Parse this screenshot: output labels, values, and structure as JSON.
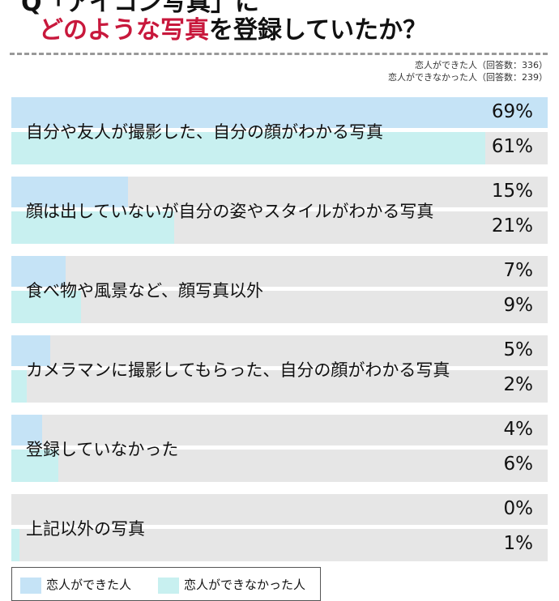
{
  "title": {
    "line1": "Q「アイコン写真」に",
    "line2_highlight": "どのような写真",
    "line2_rest": "を登録していたか？"
  },
  "notes": [
    "恋人ができた人（回答数：336）",
    "恋人ができなかった人（回答数：239）"
  ],
  "chart_data": {
    "type": "bar",
    "orientation": "horizontal",
    "title": "Q「アイコン写真」にどのような写真を登録していたか？",
    "categories": [
      "自分や友人が撮影した、自分の顔がわかる写真",
      "顔は出していないが自分の姿やスタイルがわかる写真",
      "食べ物や風景など、顔写真以外",
      "カメラマンに撮影してもらった、自分の顔がわかる写真",
      "登録していなかった",
      "上記以外の写真"
    ],
    "series": [
      {
        "name": "恋人ができた人",
        "values": [
          69,
          15,
          7,
          5,
          4,
          0
        ],
        "color": "#c5e3f6"
      },
      {
        "name": "恋人ができなかった人",
        "values": [
          61,
          21,
          9,
          2,
          6,
          1
        ],
        "color": "#c8f0f0"
      }
    ],
    "unit": "%",
    "xlim": [
      0,
      69
    ],
    "background_color": "#e6e6e6",
    "grid": false,
    "legend": "bottom-left"
  }
}
